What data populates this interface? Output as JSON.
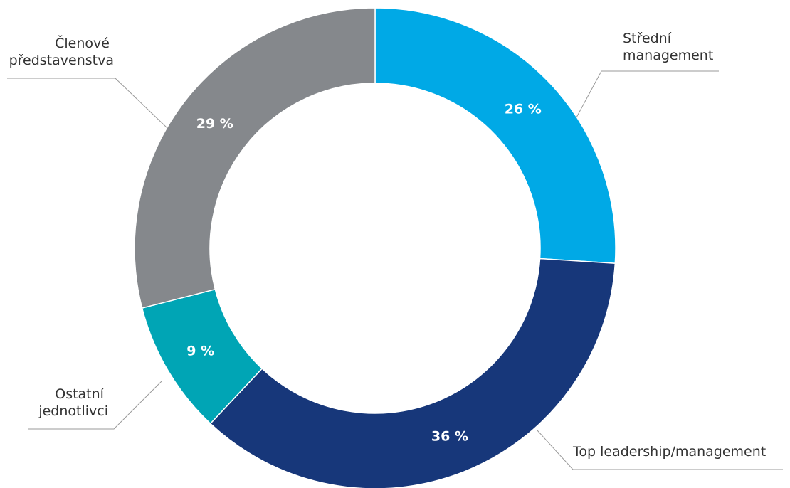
{
  "chart_data": {
    "type": "donut",
    "categories": [
      "Střední management",
      "Top leadership/management",
      "Ostatní jednotlivci",
      "Členové představenstva"
    ],
    "values": [
      26,
      36,
      9,
      29
    ],
    "value_labels": [
      "26 %",
      "36 %",
      "9 %",
      "29 %"
    ],
    "colors": [
      "#00a9e6",
      "#17377a",
      "#00a5b5",
      "#85888c"
    ]
  }
}
